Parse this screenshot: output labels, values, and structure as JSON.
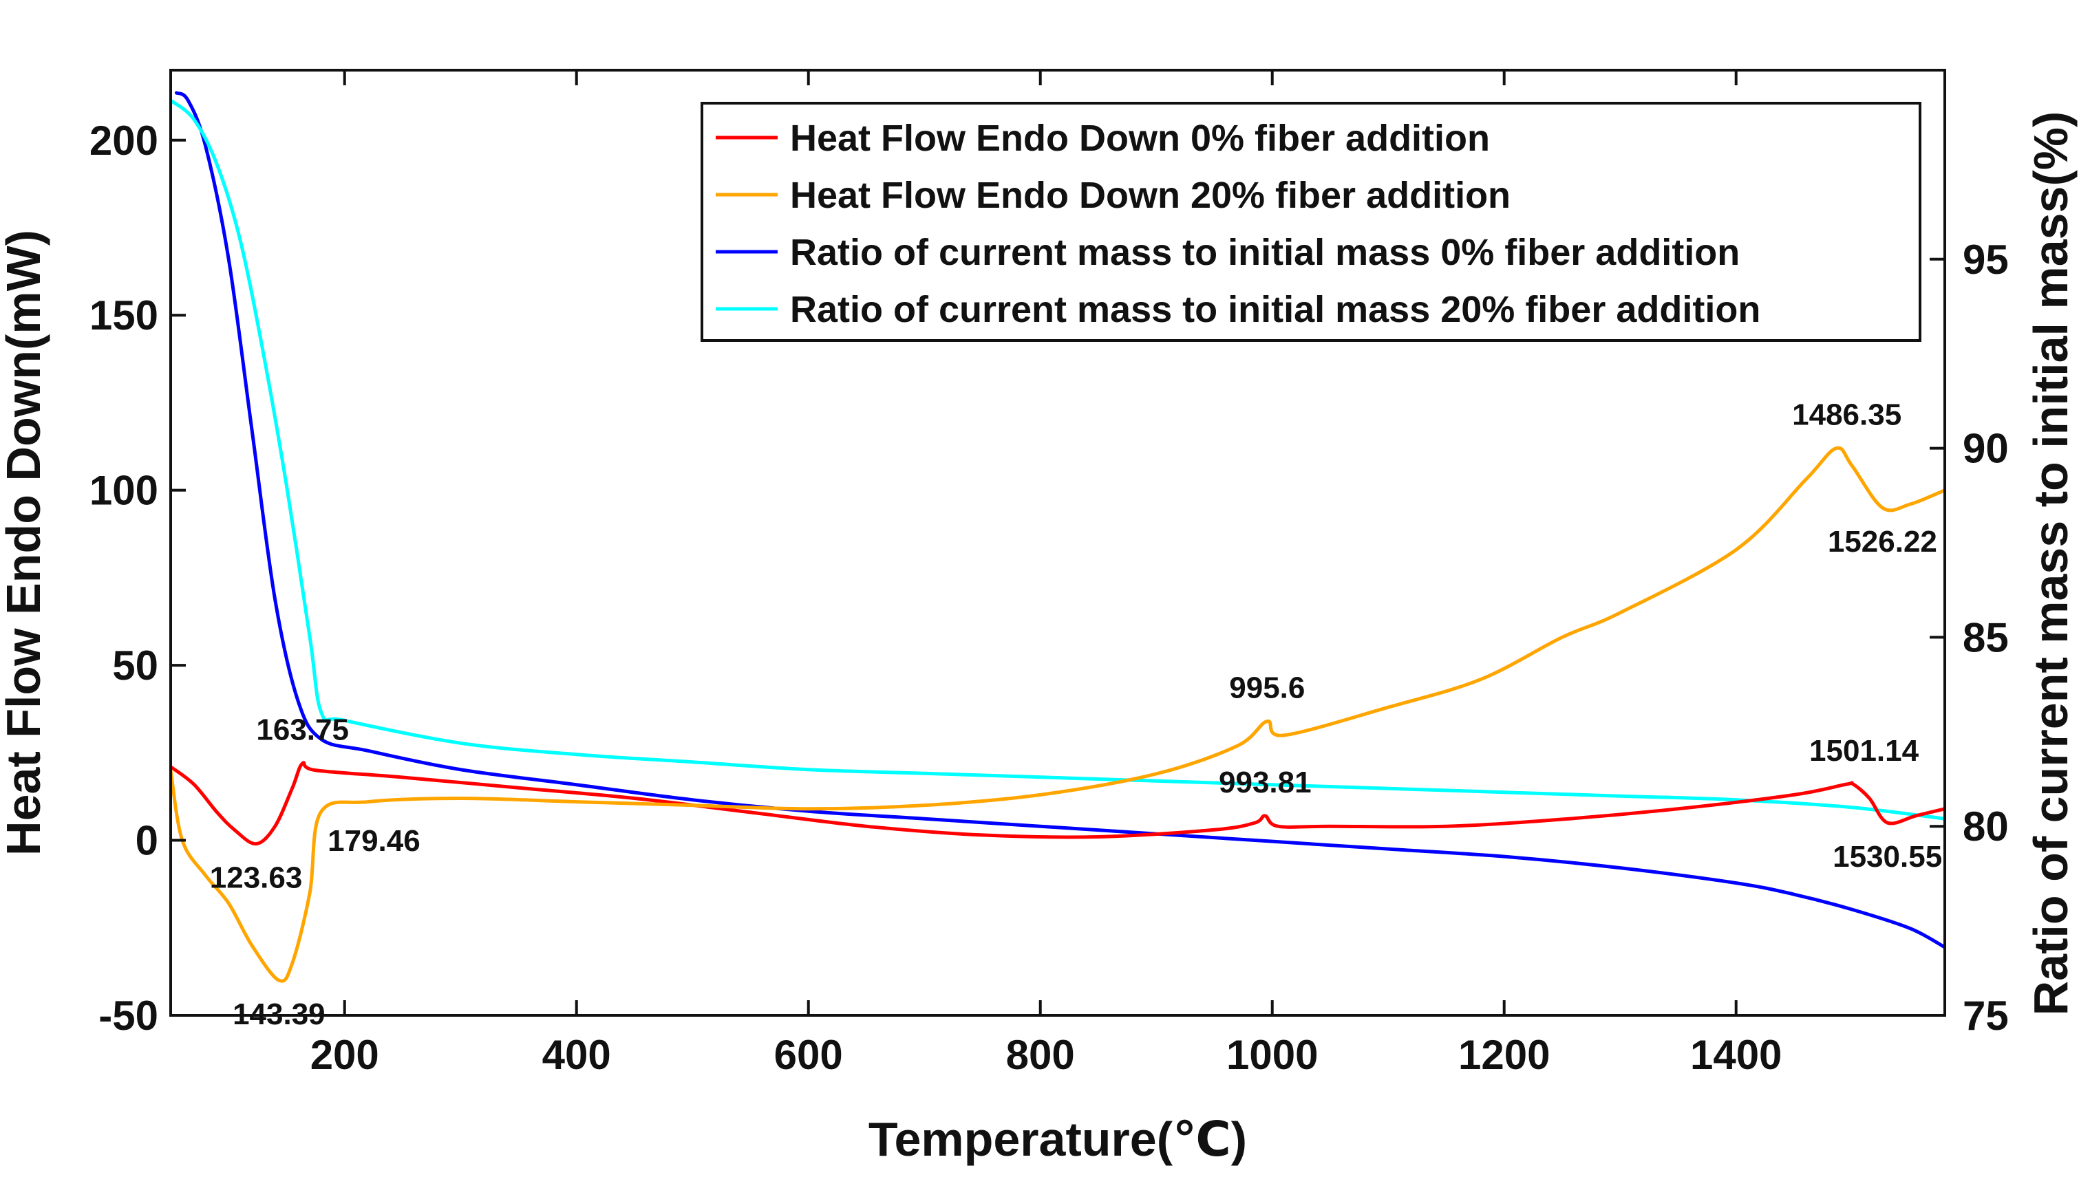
{
  "chart_data": {
    "type": "line",
    "x_axis": {
      "label": "Temperature(℃)",
      "range": [
        50,
        1580
      ],
      "ticks": [
        200,
        400,
        600,
        800,
        1000,
        1200,
        1400
      ],
      "tick_labels": [
        "200",
        "400",
        "600",
        "800",
        "1000",
        "1200",
        "1400"
      ]
    },
    "y_axis_left": {
      "label": "Heat Flow Endo Down(mW)",
      "range": [
        -50,
        220
      ],
      "ticks": [
        -50,
        0,
        50,
        100,
        150,
        200
      ],
      "tick_labels": [
        "-50",
        "0",
        "50",
        "100",
        "150",
        "200"
      ]
    },
    "y_axis_right": {
      "label": "Ratio of current mass to initial mass(%)",
      "range": [
        75,
        100
      ],
      "ticks": [
        75,
        80,
        85,
        90,
        95
      ],
      "tick_labels": [
        "75",
        "80",
        "85",
        "90",
        "95"
      ]
    },
    "legend": {
      "position": "top-right",
      "entries": [
        "Heat Flow Endo Down 0% fiber addition",
        "Heat Flow Endo Down 20% fiber addition",
        "Ratio of current mass to initial mass 0% fiber addition",
        "Ratio of current mass to initial mass 20% fiber addition"
      ]
    },
    "series": [
      {
        "name": "Heat Flow Endo Down 0% fiber addition",
        "axis": "left",
        "color": "#ff0000",
        "x": [
          50,
          70,
          90,
          105,
          123.63,
          140,
          155,
          163.75,
          175,
          250,
          350,
          450,
          550,
          650,
          750,
          850,
          950,
          985,
          993.81,
          1005,
          1050,
          1150,
          1250,
          1350,
          1450,
          1495,
          1501.14,
          1515,
          1530.55,
          1555,
          1580
        ],
        "y": [
          21,
          16,
          8,
          3,
          -1,
          4,
          15,
          22,
          20,
          18,
          15,
          12,
          8,
          4,
          1.5,
          1,
          3,
          5,
          7,
          4,
          4,
          4,
          6,
          9,
          13,
          16,
          16,
          12,
          5,
          7,
          9
        ]
      },
      {
        "name": "Heat Flow Endo Down 20% fiber addition",
        "axis": "left",
        "color": "#ffa500",
        "x": [
          50,
          60,
          80,
          100,
          120,
          143.39,
          155,
          170,
          179.46,
          220,
          300,
          400,
          500,
          600,
          700,
          800,
          900,
          970,
          995.6,
          1010,
          1100,
          1180,
          1250,
          1300,
          1400,
          1460,
          1486.35,
          1500,
          1526.22,
          1550,
          1580
        ],
        "y": [
          20,
          0,
          -10,
          -18,
          -30,
          -40,
          -35,
          -15,
          8,
          11,
          12,
          11,
          10,
          9,
          10,
          13,
          19,
          27,
          34,
          30,
          38,
          46,
          58,
          65,
          83,
          103,
          112,
          107,
          95,
          96,
          100
        ]
      },
      {
        "name": "Ratio of current mass to initial mass 0% fiber addition",
        "axis": "right",
        "color": "#0000ff",
        "x": [
          55,
          65,
          80,
          100,
          120,
          140,
          160,
          180,
          220,
          300,
          400,
          500,
          600,
          700,
          800,
          900,
          1000,
          1100,
          1200,
          1300,
          1400,
          1450,
          1500,
          1550,
          1580
        ],
        "y": [
          99.4,
          99.2,
          98.0,
          95.0,
          90.5,
          86.0,
          83.3,
          82.3,
          82.0,
          81.5,
          81.1,
          80.7,
          80.4,
          80.2,
          80.0,
          79.8,
          79.6,
          79.4,
          79.2,
          78.9,
          78.5,
          78.2,
          77.8,
          77.3,
          76.8
        ]
      },
      {
        "name": "Ratio of current mass to initial mass 20% fiber addition",
        "axis": "right",
        "color": "#00ffff",
        "x": [
          50,
          70,
          90,
          110,
          130,
          150,
          170,
          180,
          200,
          300,
          400,
          500,
          600,
          700,
          800,
          900,
          1000,
          1100,
          1200,
          1300,
          1400,
          1500,
          1580
        ],
        "y": [
          99.2,
          98.7,
          97.5,
          95.5,
          92.5,
          89.0,
          85.0,
          83.0,
          82.8,
          82.2,
          81.9,
          81.7,
          81.5,
          81.4,
          81.3,
          81.2,
          81.1,
          81.0,
          80.9,
          80.8,
          80.7,
          80.5,
          80.2
        ]
      }
    ],
    "annotations": [
      {
        "text": "163.75",
        "x": 163.75,
        "y": 22,
        "axis": "left",
        "placement": "above"
      },
      {
        "text": "123.63",
        "x": 123.63,
        "y": -1,
        "axis": "left",
        "placement": "below"
      },
      {
        "text": "179.46",
        "x": 179.46,
        "y": 8,
        "axis": "left",
        "placement": "below-right"
      },
      {
        "text": "143.39",
        "x": 143.39,
        "y": -40,
        "axis": "left",
        "placement": "below"
      },
      {
        "text": "995.6",
        "x": 995.6,
        "y": 34,
        "axis": "left",
        "placement": "above"
      },
      {
        "text": "993.81",
        "x": 993.81,
        "y": 7,
        "axis": "left",
        "placement": "above"
      },
      {
        "text": "1486.35",
        "x": 1486.35,
        "y": 112,
        "axis": "left",
        "placement": "above-left"
      },
      {
        "text": "1526.22",
        "x": 1526.22,
        "y": 95,
        "axis": "left",
        "placement": "below"
      },
      {
        "text": "1501.14",
        "x": 1501.14,
        "y": 16,
        "axis": "left",
        "placement": "above-left"
      },
      {
        "text": "1530.55",
        "x": 1530.55,
        "y": 5,
        "axis": "left",
        "placement": "below"
      }
    ]
  }
}
